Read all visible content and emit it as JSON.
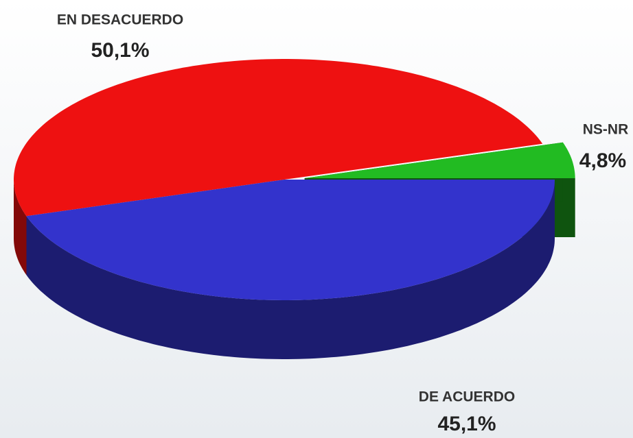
{
  "chart_data": {
    "type": "pie3d",
    "categories": [
      "NS-NR",
      "EN DESACUERDO",
      "DE ACUERDO"
    ],
    "values": [
      4.8,
      50.1,
      45.1
    ],
    "value_labels": [
      "4,8%",
      "50,1%",
      "45,1%"
    ],
    "colors": [
      "#22bb22",
      "#ee1111",
      "#3333cc"
    ],
    "exploded": [
      true,
      false,
      false
    ]
  }
}
